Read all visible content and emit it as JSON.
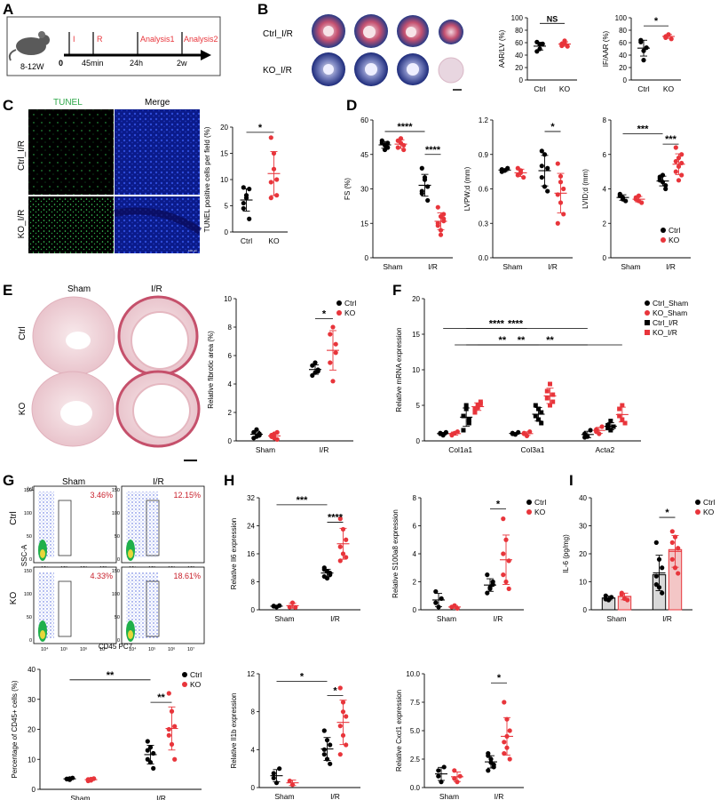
{
  "colors": {
    "ctrl": "#000000",
    "ko": "#e8353b",
    "ko_fill": "#f3c6c6",
    "ctrl_fill": "#d9d9d9",
    "timeline_text": "#e8353b",
    "ko_marker_open": "#e8353b"
  },
  "panels": {
    "A": {
      "label": "A",
      "age": "8-12W",
      "zero": "0",
      "i": "I",
      "r": "R",
      "t1": "45min",
      "t2": "24h",
      "t3": "2w",
      "a1": "Analysis1",
      "a2": "Analysis2"
    },
    "B": {
      "label": "B",
      "row1": "Ctrl_I/R",
      "row2": "KO_I/R"
    },
    "C": {
      "label": "C",
      "tunel": "TUNEL",
      "merge": "Merge",
      "row1": "Ctrl_I/R",
      "row2": "KO_I/R",
      "scale": "100 μm"
    },
    "D": {
      "label": "D"
    },
    "E": {
      "label": "E",
      "col1": "Sham",
      "col2": "I/R",
      "row1": "Ctrl",
      "row2": "KO"
    },
    "F": {
      "label": "F"
    },
    "G": {
      "label": "G",
      "col1": "Sham",
      "col2": "I/R",
      "row1": "Ctrl",
      "row2": "KO",
      "yaxis": "SSC-A",
      "xaxis": "CD45 PC7",
      "pct": [
        "3.46%",
        "12.15%",
        "4.33%",
        "18.61%"
      ],
      "yunit": "(x10⁵)"
    },
    "H": {
      "label": "H"
    },
    "I": {
      "label": "I"
    }
  },
  "chart_data": [
    {
      "id": "B_aar",
      "type": "scatter",
      "ylabel": "AAR/LV (%)",
      "categories": [
        "Ctrl",
        "KO"
      ],
      "ylim": [
        0,
        100
      ],
      "yticks": [
        0,
        20,
        40,
        60,
        80,
        100
      ],
      "sig": "NS",
      "series": [
        {
          "name": "Ctrl",
          "values": [
            46,
            57,
            58,
            61,
            50
          ]
        },
        {
          "name": "KO",
          "values": [
            58,
            59,
            54,
            55,
            63
          ]
        }
      ]
    },
    {
      "id": "B_if",
      "type": "scatter",
      "ylabel": "IF/AAR (%)",
      "categories": [
        "Ctrl",
        "KO"
      ],
      "ylim": [
        0,
        100
      ],
      "yticks": [
        0,
        20,
        40,
        60,
        80,
        100
      ],
      "sig": "*",
      "series": [
        {
          "name": "Ctrl",
          "values": [
            64,
            47,
            52,
            61,
            32
          ]
        },
        {
          "name": "KO",
          "values": [
            70,
            73,
            66,
            68,
            73
          ]
        }
      ]
    },
    {
      "id": "C_tunel",
      "type": "scatter",
      "ylabel": "TUNEL positive cells per field (%)",
      "categories": [
        "Ctrl",
        "KO"
      ],
      "ylim": [
        0,
        20
      ],
      "yticks": [
        0,
        5,
        10,
        15,
        20
      ],
      "sig": "*",
      "series": [
        {
          "name": "Ctrl",
          "values": [
            8.5,
            6.5,
            2.5,
            4.5,
            7,
            8.2,
            5.5
          ]
        },
        {
          "name": "KO",
          "values": [
            18,
            15,
            7,
            9.5,
            12,
            10,
            6.5
          ]
        }
      ]
    },
    {
      "id": "D_fs",
      "type": "scatter",
      "ylabel": "FS (%)",
      "categories": [
        "Sham",
        "I/R"
      ],
      "ylim": [
        0,
        60
      ],
      "yticks": [
        0,
        15,
        30,
        45,
        60
      ],
      "sig": [
        "****",
        "****"
      ],
      "series": [
        {
          "name": "Ctrl",
          "values": [
            [
              50,
              49,
              48,
              51,
              47,
              50
            ],
            [
              39,
              34,
              31,
              28,
              35,
              25,
              29
            ]
          ]
        },
        {
          "name": "KO",
          "values": [
            [
              51,
              50,
              49,
              48,
              52,
              47
            ],
            [
              22,
              18,
              16,
              14,
              12,
              19,
              15,
              10,
              17
            ]
          ]
        }
      ]
    },
    {
      "id": "D_lvpw",
      "type": "scatter",
      "ylabel": "LVPW;d (mm)",
      "categories": [
        "Sham",
        "I/R"
      ],
      "ylim": [
        0,
        1.2
      ],
      "yticks": [
        0.0,
        0.3,
        0.6,
        0.9,
        1.2
      ],
      "sig": [
        "*"
      ],
      "series": [
        {
          "name": "Ctrl",
          "values": [
            [
              0.77,
              0.76,
              0.78,
              0.75,
              0.76
            ],
            [
              0.93,
              0.9,
              0.78,
              0.7,
              0.62,
              0.58,
              0.8
            ]
          ]
        },
        {
          "name": "KO",
          "values": [
            [
              0.78,
              0.74,
              0.7,
              0.72,
              0.76
            ],
            [
              0.82,
              0.71,
              0.6,
              0.55,
              0.48,
              0.38,
              0.3,
              0.66
            ]
          ]
        }
      ]
    },
    {
      "id": "D_lvid",
      "type": "scatter",
      "ylabel": "LVID;d (mm)",
      "categories": [
        "Sham",
        "I/R"
      ],
      "ylim": [
        0,
        8
      ],
      "yticks": [
        0,
        2,
        4,
        6,
        8
      ],
      "sig": [
        "***",
        "***"
      ],
      "legend": [
        "Ctrl",
        "KO"
      ],
      "series": [
        {
          "name": "Ctrl",
          "values": [
            [
              3.6,
              3.4,
              3.3,
              3.7,
              3.5
            ],
            [
              4.7,
              4.4,
              4.2,
              4.6,
              4.8,
              4.0,
              4.5
            ]
          ]
        },
        {
          "name": "KO",
          "values": [
            [
              3.4,
              3.3,
              3.2,
              3.5,
              3.6
            ],
            [
              6.4,
              5.8,
              5.5,
              5.0,
              5.3,
              4.8,
              5.6,
              4.5,
              6.0
            ]
          ]
        }
      ]
    },
    {
      "id": "E_fib",
      "type": "scatter",
      "ylabel": "Relative fibrotic area (%)",
      "categories": [
        "Sham",
        "I/R"
      ],
      "ylim": [
        0,
        10
      ],
      "yticks": [
        0,
        2,
        4,
        6,
        8,
        10
      ],
      "sig": [
        "*"
      ],
      "legend": [
        "Ctrl",
        "KO"
      ],
      "series": [
        {
          "name": "Ctrl",
          "values": [
            [
              0.6,
              0.3,
              0.5,
              0.2,
              0.8,
              0.4
            ],
            [
              5.3,
              4.8,
              5.0,
              4.6,
              5.5,
              4.9
            ]
          ]
        },
        {
          "name": "KO",
          "values": [
            [
              0.4,
              0.2,
              0.6,
              0.3,
              0.5,
              0.1
            ],
            [
              7.5,
              8.0,
              6.8,
              5.5,
              4.2,
              6.2
            ]
          ]
        }
      ]
    },
    {
      "id": "F_mrna",
      "type": "scatter",
      "ylabel": "Relative mRNA expression",
      "categories": [
        "Col1a1",
        "Col3a1",
        "Acta2"
      ],
      "ylim": [
        0,
        20
      ],
      "yticks": [
        0,
        5,
        10,
        15,
        20
      ],
      "sig": [
        "****",
        "**",
        "****",
        "**",
        "**"
      ],
      "legend": [
        "Ctrl_Sham",
        "KO_Sham",
        "Ctrl_I/R",
        "KO_I/R"
      ],
      "series": [
        {
          "name": "Ctrl_Sham",
          "values": [
            [
              1.0,
              0.8,
              1.2,
              1.1
            ],
            [
              1.0,
              0.9,
              1.2,
              1.1
            ],
            [
              1.0,
              0.6,
              1.5,
              0.5
            ]
          ]
        },
        {
          "name": "KO_Sham",
          "values": [
            [
              0.9,
              1.1,
              1.3,
              0.8
            ],
            [
              1.0,
              0.7,
              1.3,
              1.1
            ],
            [
              1.6,
              1.0,
              2.0,
              1.3
            ]
          ]
        },
        {
          "name": "Ctrl_I/R",
          "values": [
            [
              3.5,
              4.5,
              2.5,
              1.5,
              5.0,
              3.0
            ],
            [
              3.5,
              4.5,
              2.5,
              5.0,
              3.0,
              4.0
            ],
            [
              2.2,
              1.5,
              2.0,
              1.8,
              2.8
            ]
          ]
        },
        {
          "name": "KO_I/R",
          "values": [
            [
              4.5,
              5.0,
              5.5,
              4.0,
              4.7,
              5.2
            ],
            [
              6.0,
              8.0,
              5.5,
              7.0,
              5.0,
              6.5
            ],
            [
              3.5,
              5.0,
              2.5,
              4.5,
              3.0
            ]
          ]
        }
      ]
    },
    {
      "id": "G_cd45",
      "type": "scatter",
      "ylabel": "Percentage of CD45+ cells (%)",
      "categories": [
        "Sham",
        "I/R"
      ],
      "ylim": [
        0,
        40
      ],
      "yticks": [
        0,
        10,
        20,
        30,
        40
      ],
      "sig": [
        "**",
        "**"
      ],
      "legend": [
        "Ctrl",
        "KO"
      ],
      "series": [
        {
          "name": "Ctrl",
          "values": [
            [
              3.5,
              3.2,
              3.8,
              3.4,
              3.6
            ],
            [
              16,
              14,
              12,
              10,
              9,
              7,
              13
            ]
          ]
        },
        {
          "name": "KO",
          "values": [
            [
              3.3,
              3.0,
              3.6,
              2.8,
              3.4
            ],
            [
              32,
              26,
              21,
              18,
              15,
              10,
              20
            ]
          ]
        }
      ]
    },
    {
      "id": "H_il6",
      "type": "scatter",
      "ylabel": "Relative Il6 expression",
      "categories": [
        "Sham",
        "I/R"
      ],
      "ylim": [
        0,
        32
      ],
      "yticks": [
        0,
        8,
        16,
        24,
        32
      ],
      "sig": [
        "***",
        "****"
      ],
      "series": [
        {
          "name": "Ctrl",
          "values": [
            [
              1.0,
              0.8,
              1.2,
              1.1
            ],
            [
              12,
              11,
              10,
              9.5,
              9,
              10.5,
              11.5
            ]
          ]
        },
        {
          "name": "KO",
          "values": [
            [
              0.8,
              2.0,
              0.7
            ],
            [
              26,
              23,
              20,
              18,
              16,
              15,
              14
            ]
          ]
        }
      ]
    },
    {
      "id": "H_s100a8",
      "type": "scatter",
      "ylabel": "Relative S100a8 expression",
      "categories": [
        "Sham",
        "I/R"
      ],
      "ylim": [
        0,
        8
      ],
      "yticks": [
        0,
        2,
        4,
        6,
        8
      ],
      "sig": [
        "*"
      ],
      "legend": [
        "Ctrl",
        "KO"
      ],
      "series": [
        {
          "name": "Ctrl",
          "values": [
            [
              1.3,
              0.2,
              0.8,
              0.5
            ],
            [
              2.5,
              1.5,
              1.8,
              1.2,
              1.6,
              2.0
            ]
          ]
        },
        {
          "name": "KO",
          "values": [
            [
              0.2,
              0.3,
              0.1
            ],
            [
              6.5,
              5.0,
              3.5,
              2.5,
              2.0,
              1.5,
              4.0
            ]
          ]
        }
      ]
    },
    {
      "id": "I_il6",
      "type": "bar",
      "ylabel": "IL-6 (pg/mg)",
      "categories": [
        "Sham",
        "I/R"
      ],
      "ylim": [
        0,
        40
      ],
      "yticks": [
        0,
        10,
        20,
        30,
        40
      ],
      "sig": [
        "*"
      ],
      "legend": [
        "Ctrl",
        "KO"
      ],
      "series": [
        {
          "name": "Ctrl",
          "values": [
            4.2,
            12.5
          ],
          "points": [
            [
              5,
              3.5,
              4.5,
              3.8
            ],
            [
              24,
              18,
              15,
              12,
              8,
              6,
              9
            ]
          ]
        },
        {
          "name": "KO",
          "values": [
            4.8,
            21.5
          ],
          "points": [
            [
              6,
              4,
              3.5,
              5.5
            ],
            [
              28,
              26,
              22,
              18,
              15,
              13,
              24
            ]
          ]
        }
      ]
    },
    {
      "id": "H_il1b",
      "type": "scatter",
      "ylabel": "Relative Il1b expression",
      "categories": [
        "Sham",
        "I/R"
      ],
      "ylim": [
        0,
        12
      ],
      "yticks": [
        0,
        4,
        8,
        12
      ],
      "sig": [
        "*",
        "*"
      ],
      "series": [
        {
          "name": "Ctrl",
          "values": [
            [
              1.5,
              0.5,
              2.0,
              1.0
            ],
            [
              6.0,
              5.0,
              4.5,
              3.5,
              3.0,
              2.5,
              4.0
            ]
          ]
        },
        {
          "name": "KO",
          "values": [
            [
              0.7,
              0.3
            ],
            [
              10.5,
              9.0,
              7.5,
              6.5,
              5.5,
              4.5,
              3.5,
              8.0
            ]
          ]
        }
      ]
    },
    {
      "id": "H_cxcl1",
      "type": "scatter",
      "ylabel": "Relative Cxcl1 expression",
      "categories": [
        "Sham",
        "I/R"
      ],
      "ylim": [
        0,
        10
      ],
      "yticks": [
        0.0,
        2.5,
        5.0,
        7.5,
        10.0
      ],
      "sig": [
        "*"
      ],
      "series": [
        {
          "name": "Ctrl",
          "values": [
            [
              1.5,
              0.5,
              1.8,
              1.0
            ],
            [
              3.0,
              2.5,
              2.0,
              1.5,
              2.2,
              1.8,
              2.8
            ]
          ]
        },
        {
          "name": "KO",
          "values": [
            [
              1.5,
              0.5,
              1.0,
              0.8
            ],
            [
              7.5,
              6.0,
              5.0,
              4.0,
              3.5,
              2.5,
              3.0,
              4.5
            ]
          ]
        }
      ]
    }
  ]
}
